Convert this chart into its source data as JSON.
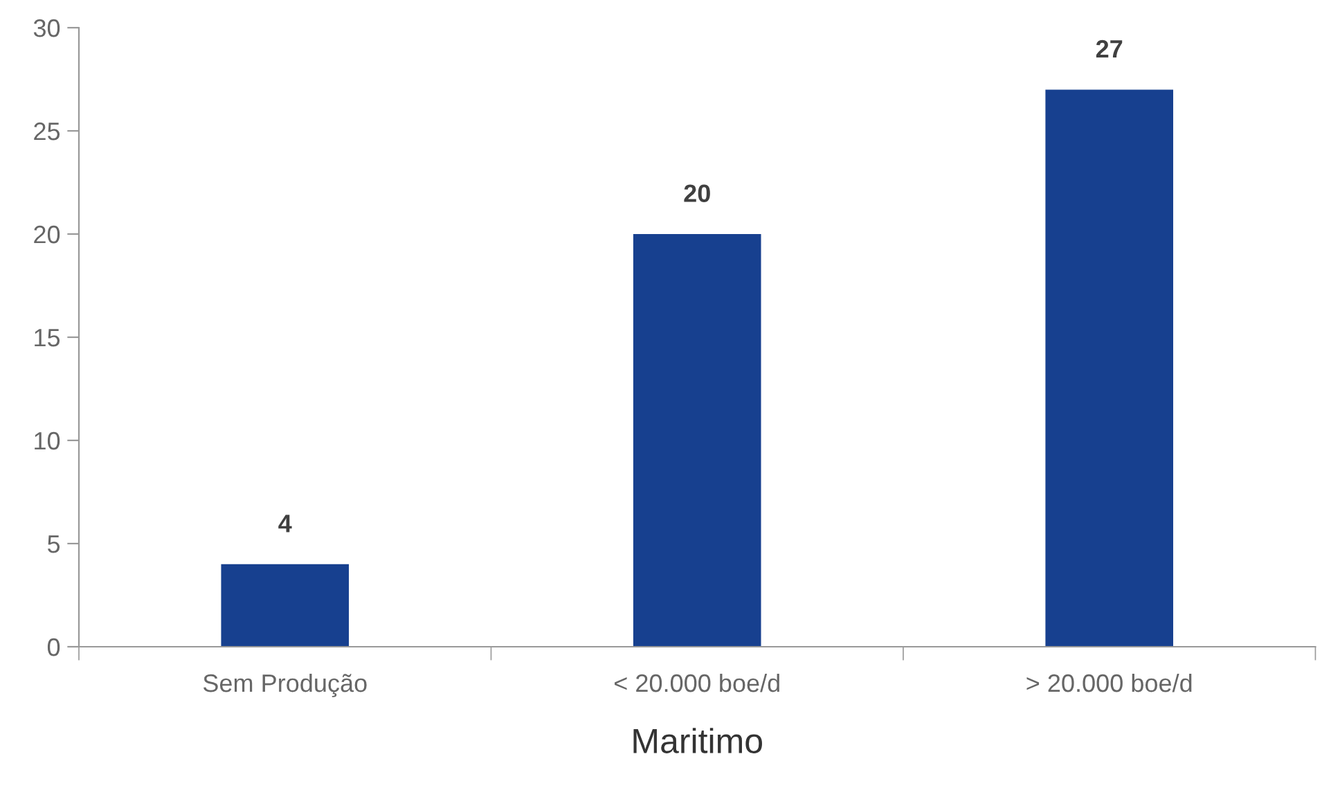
{
  "chart_data": {
    "type": "bar",
    "xlabel": "Maritimo",
    "categories": [
      "Sem Produção",
      "< 20.000 boe/d",
      "> 20.000 boe/d"
    ],
    "values": [
      4,
      20,
      27
    ],
    "color": "#17408f",
    "ylim": [
      0,
      30
    ],
    "yticks": [
      0,
      5,
      10,
      15,
      20,
      25,
      30
    ],
    "grid": false,
    "data_labels": true
  }
}
